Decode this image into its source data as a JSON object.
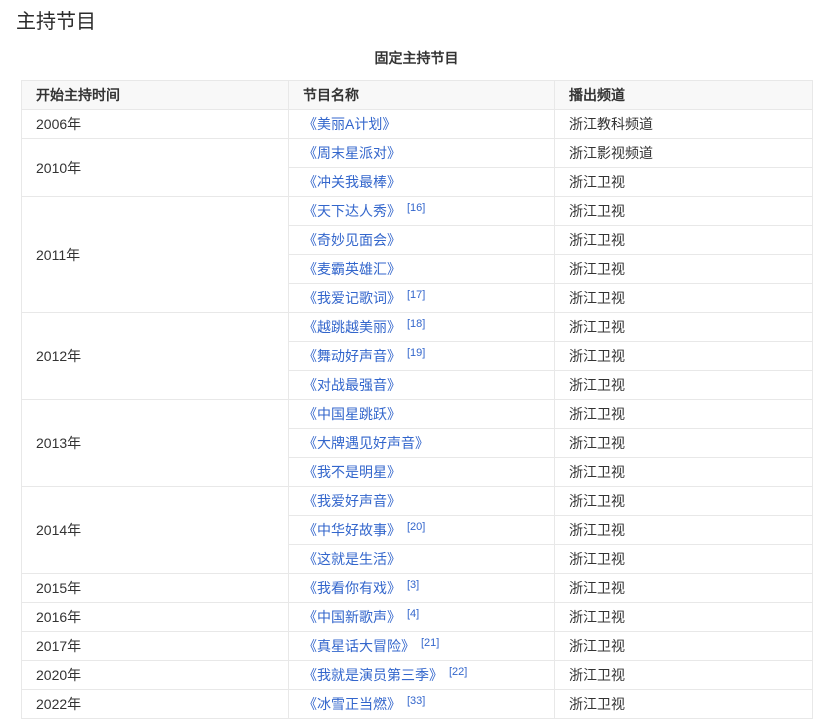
{
  "page": {
    "title": "主持节目"
  },
  "table": {
    "caption": "固定主持节目",
    "columns": {
      "start_time": "开始主持时间",
      "program_name": "节目名称",
      "channel": "播出频道"
    },
    "link_color": "#3366cc",
    "header_bg": "#f8f8f8",
    "border_color": "#e8e8e8",
    "rows": [
      {
        "year": "2006年",
        "span": 1,
        "program": "《美丽A计划》",
        "ref": "",
        "channel": "浙江教科频道"
      },
      {
        "year": "2010年",
        "span": 2,
        "program": "《周末星派对》",
        "ref": "",
        "channel": "浙江影视频道"
      },
      {
        "program": "《冲关我最棒》",
        "ref": "",
        "channel": "浙江卫视"
      },
      {
        "year": "2011年",
        "span": 4,
        "program": "《天下达人秀》",
        "ref": "[16]",
        "channel": "浙江卫视"
      },
      {
        "program": "《奇妙见面会》",
        "ref": "",
        "channel": "浙江卫视"
      },
      {
        "program": "《麦霸英雄汇》",
        "ref": "",
        "channel": "浙江卫视"
      },
      {
        "program": "《我爱记歌词》",
        "ref": "[17]",
        "channel": "浙江卫视"
      },
      {
        "year": "2012年",
        "span": 3,
        "program": "《越跳越美丽》",
        "ref": "[18]",
        "channel": "浙江卫视"
      },
      {
        "program": "《舞动好声音》",
        "ref": "[19]",
        "channel": "浙江卫视"
      },
      {
        "program": "《对战最强音》",
        "ref": "",
        "channel": "浙江卫视"
      },
      {
        "year": "2013年",
        "span": 3,
        "program": "《中国星跳跃》",
        "ref": "",
        "channel": "浙江卫视"
      },
      {
        "program": "《大牌遇见好声音》",
        "ref": "",
        "channel": "浙江卫视"
      },
      {
        "program": "《我不是明星》",
        "ref": "",
        "channel": "浙江卫视"
      },
      {
        "year": "2014年",
        "span": 3,
        "program": "《我爱好声音》",
        "ref": "",
        "channel": "浙江卫视"
      },
      {
        "program": "《中华好故事》",
        "ref": "[20]",
        "channel": "浙江卫视"
      },
      {
        "program": "《这就是生活》",
        "ref": "",
        "channel": "浙江卫视"
      },
      {
        "year": "2015年",
        "span": 1,
        "program": "《我看你有戏》",
        "ref": "[3]",
        "channel": "浙江卫视"
      },
      {
        "year": "2016年",
        "span": 1,
        "program": "《中国新歌声》",
        "ref": "[4]",
        "channel": "浙江卫视"
      },
      {
        "year": "2017年",
        "span": 1,
        "program": "《真星话大冒险》",
        "ref": "[21]",
        "channel": "浙江卫视"
      },
      {
        "year": "2020年",
        "span": 1,
        "program": "《我就是演员第三季》",
        "ref": "[22]",
        "channel": "浙江卫视"
      },
      {
        "year": "2022年",
        "span": 1,
        "program": "《冰雪正当燃》",
        "ref": "[33]",
        "channel": "浙江卫视"
      }
    ]
  }
}
